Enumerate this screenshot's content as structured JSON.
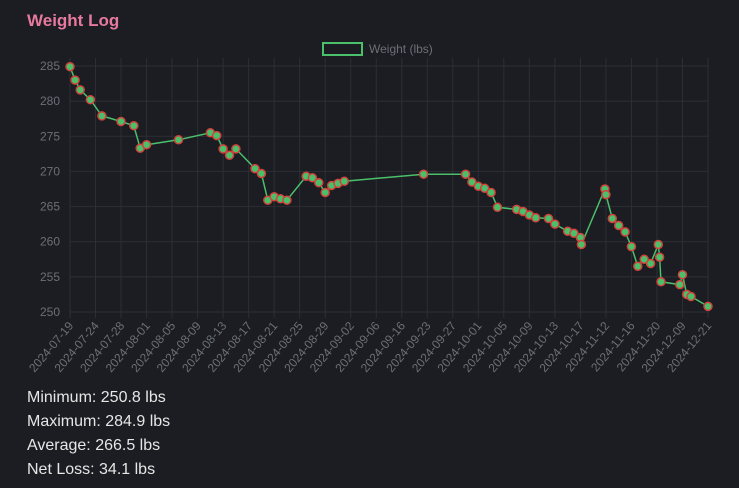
{
  "page_title": "Weight Log",
  "stats": {
    "minimum": "Minimum: 250.8 lbs",
    "maximum": "Maximum: 284.9 lbs",
    "average": "Average: 266.5 lbs",
    "net_loss": "Net Loss: 34.1 lbs"
  },
  "colors": {
    "title": "#e7799f",
    "line": "#4bc06b",
    "point_fill": "#4bc06b",
    "point_border": "#d0423b",
    "grid": "#2c2f35",
    "tick_text": "#6b6f77",
    "background": "#1b1d22"
  },
  "chart_data": {
    "type": "line",
    "legend": {
      "position": "top",
      "label": "Weight (lbs)"
    },
    "grid": true,
    "ylim": [
      249,
      286
    ],
    "yticks": [
      250,
      255,
      260,
      265,
      270,
      275,
      280,
      285
    ],
    "xlim": [
      "2024-07-19",
      "2024-12-21"
    ],
    "categories": [
      "2024-07-19",
      "2024-07-24",
      "2024-07-28",
      "2024-08-01",
      "2024-08-05",
      "2024-08-09",
      "2024-08-13",
      "2024-08-17",
      "2024-08-21",
      "2024-08-25",
      "2024-08-29",
      "2024-09-02",
      "2024-09-06",
      "2024-09-16",
      "2024-09-23",
      "2024-09-27",
      "2024-10-01",
      "2024-10-05",
      "2024-10-09",
      "2024-10-13",
      "2024-10-17",
      "2024-11-12",
      "2024-11-16",
      "2024-11-20",
      "2024-12-09",
      "2024-12-21"
    ],
    "series": [
      {
        "name": "Weight (lbs)",
        "points": [
          [
            "2024-07-19",
            284.9
          ],
          [
            "2024-07-20",
            283.0
          ],
          [
            "2024-07-21",
            281.6
          ],
          [
            "2024-07-23",
            280.2
          ],
          [
            "2024-07-25",
            277.9
          ],
          [
            "2024-07-28",
            277.1
          ],
          [
            "2024-07-30",
            276.5
          ],
          [
            "2024-07-31",
            273.3
          ],
          [
            "2024-08-01",
            273.8
          ],
          [
            "2024-08-06",
            274.5
          ],
          [
            "2024-08-11",
            275.5
          ],
          [
            "2024-08-12",
            275.1
          ],
          [
            "2024-08-13",
            273.2
          ],
          [
            "2024-08-14",
            272.3
          ],
          [
            "2024-08-15",
            273.2
          ],
          [
            "2024-08-18",
            270.4
          ],
          [
            "2024-08-19",
            269.7
          ],
          [
            "2024-08-20",
            265.9
          ],
          [
            "2024-08-21",
            266.4
          ],
          [
            "2024-08-22",
            266.1
          ],
          [
            "2024-08-23",
            265.9
          ],
          [
            "2024-08-26",
            269.3
          ],
          [
            "2024-08-27",
            269.1
          ],
          [
            "2024-08-28",
            268.4
          ],
          [
            "2024-08-29",
            267.0
          ],
          [
            "2024-08-30",
            268.0
          ],
          [
            "2024-08-31",
            268.3
          ],
          [
            "2024-09-01",
            268.6
          ],
          [
            "2024-09-22",
            269.6
          ],
          [
            "2024-09-29",
            269.6
          ],
          [
            "2024-09-30",
            268.5
          ],
          [
            "2024-10-01",
            267.9
          ],
          [
            "2024-10-02",
            267.6
          ],
          [
            "2024-10-03",
            267.0
          ],
          [
            "2024-10-04",
            264.9
          ],
          [
            "2024-10-07",
            264.6
          ],
          [
            "2024-10-08",
            264.3
          ],
          [
            "2024-10-09",
            263.8
          ],
          [
            "2024-10-10",
            263.4
          ],
          [
            "2024-10-12",
            263.3
          ],
          [
            "2024-10-13",
            262.5
          ],
          [
            "2024-10-15",
            261.5
          ],
          [
            "2024-10-16",
            261.2
          ],
          [
            "2024-10-17",
            260.6
          ],
          [
            "2024-10-18",
            259.6
          ],
          [
            "2024-11-11",
            267.5
          ],
          [
            "2024-11-12",
            266.7
          ],
          [
            "2024-11-13",
            263.3
          ],
          [
            "2024-11-14",
            262.3
          ],
          [
            "2024-11-15",
            261.4
          ],
          [
            "2024-11-16",
            259.3
          ],
          [
            "2024-11-17",
            256.5
          ],
          [
            "2024-11-18",
            257.5
          ],
          [
            "2024-11-19",
            256.9
          ],
          [
            "2024-11-21",
            259.6
          ],
          [
            "2024-11-22",
            257.8
          ],
          [
            "2024-11-23",
            254.3
          ],
          [
            "2024-12-07",
            253.9
          ],
          [
            "2024-12-09",
            255.3
          ],
          [
            "2024-12-11",
            252.5
          ],
          [
            "2024-12-13",
            252.2
          ],
          [
            "2024-12-21",
            250.8
          ]
        ]
      }
    ]
  }
}
